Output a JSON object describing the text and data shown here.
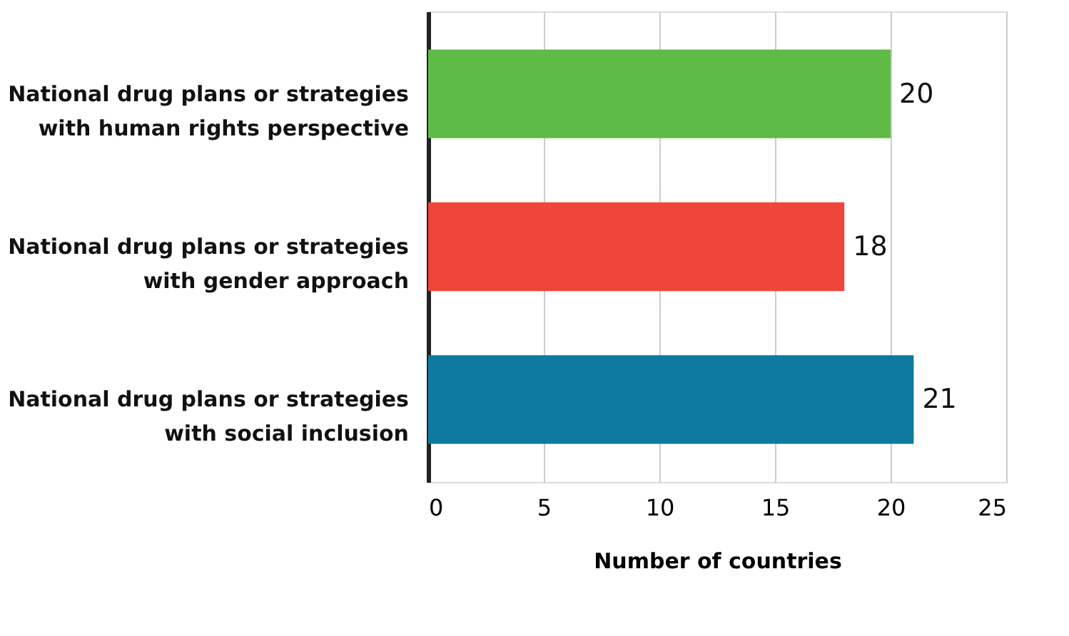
{
  "chart_data": {
    "type": "bar",
    "orientation": "horizontal",
    "categories": [
      "National drug plans or strategies with human rights perspective",
      "National drug plans or strategies with gender approach",
      "National drug plans or strategies with social inclusion"
    ],
    "values": [
      20,
      18,
      21
    ],
    "colors": [
      "#5dbb46",
      "#ef463b",
      "#0e7aa0"
    ],
    "xlabel": "Number of countries",
    "xlim": [
      0,
      25
    ],
    "xticks": [
      0,
      5,
      10,
      15,
      20,
      25
    ],
    "grid": "x",
    "data_labels": true
  }
}
